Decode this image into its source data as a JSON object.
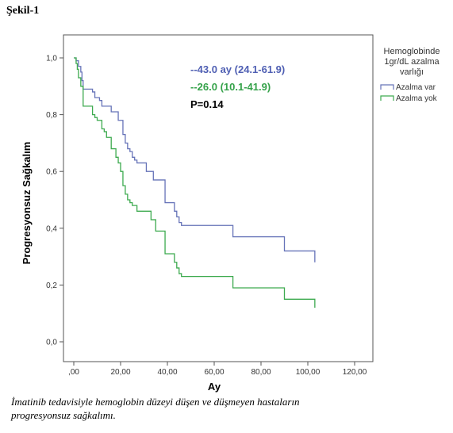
{
  "figure_title": "Şekil-1",
  "caption_lines": [
    "İmatinib tedavisiyle hemoglobin düzeyi düşen ve düşmeyen hastaların",
    "progresyonsuz sağkalımı."
  ],
  "chart_data": {
    "type": "line",
    "title": "",
    "xlabel": "Ay",
    "ylabel": "Progresyonsuz Sağkalım",
    "xlim": [
      0,
      120
    ],
    "ylim": [
      0,
      1
    ],
    "x_ticks": [
      0,
      20,
      40,
      60,
      80,
      100,
      120
    ],
    "x_tick_labels": [
      ",00",
      "20,00",
      "40,00",
      "60,00",
      "80,00",
      "100,00",
      "120,00"
    ],
    "y_ticks": [
      0,
      0.2,
      0.4,
      0.6,
      0.8,
      1.0
    ],
    "y_tick_labels": [
      "0,0",
      "0,2",
      "0,4",
      "0,6",
      "0,8",
      "1,0"
    ],
    "grid": false,
    "step": true,
    "legend": {
      "position": "top-right",
      "title_lines": [
        "Hemoglobinde",
        "1gr/dL azalma",
        "varlığı"
      ]
    },
    "series": [
      {
        "name": "Azalma var",
        "color": "#6673b8",
        "points": [
          [
            0,
            1.0
          ],
          [
            1,
            0.99
          ],
          [
            2,
            0.97
          ],
          [
            3,
            0.95
          ],
          [
            3.5,
            0.92
          ],
          [
            4,
            0.89
          ],
          [
            8,
            0.88
          ],
          [
            9,
            0.86
          ],
          [
            11,
            0.85
          ],
          [
            12,
            0.83
          ],
          [
            16,
            0.81
          ],
          [
            19,
            0.78
          ],
          [
            21,
            0.73
          ],
          [
            22,
            0.7
          ],
          [
            23,
            0.68
          ],
          [
            24,
            0.67
          ],
          [
            25,
            0.65
          ],
          [
            26,
            0.64
          ],
          [
            27,
            0.63
          ],
          [
            31,
            0.6
          ],
          [
            34,
            0.57
          ],
          [
            39,
            0.49
          ],
          [
            43,
            0.46
          ],
          [
            44,
            0.44
          ],
          [
            45,
            0.42
          ],
          [
            46,
            0.41
          ],
          [
            68,
            0.37
          ],
          [
            90,
            0.32
          ],
          [
            103,
            0.28
          ]
        ]
      },
      {
        "name": "Azalma yok",
        "color": "#3daa4f",
        "points": [
          [
            0,
            1.0
          ],
          [
            1,
            0.98
          ],
          [
            1.5,
            0.96
          ],
          [
            2,
            0.93
          ],
          [
            3,
            0.9
          ],
          [
            4,
            0.83
          ],
          [
            8,
            0.8
          ],
          [
            9,
            0.79
          ],
          [
            10,
            0.78
          ],
          [
            12,
            0.75
          ],
          [
            13,
            0.74
          ],
          [
            14,
            0.72
          ],
          [
            16,
            0.68
          ],
          [
            18,
            0.65
          ],
          [
            19,
            0.63
          ],
          [
            20,
            0.6
          ],
          [
            21,
            0.55
          ],
          [
            22,
            0.52
          ],
          [
            23,
            0.5
          ],
          [
            24,
            0.49
          ],
          [
            25,
            0.48
          ],
          [
            27,
            0.46
          ],
          [
            33,
            0.43
          ],
          [
            35,
            0.39
          ],
          [
            39,
            0.31
          ],
          [
            43,
            0.28
          ],
          [
            44,
            0.26
          ],
          [
            45,
            0.24
          ],
          [
            46,
            0.23
          ],
          [
            68,
            0.19
          ],
          [
            90,
            0.15
          ],
          [
            103,
            0.12
          ]
        ]
      }
    ],
    "annotations": [
      {
        "text": "--43.0 ay (24.1-61.9)",
        "color": "#4f5fb3"
      },
      {
        "text": "--26.0 (10.1-41.9)",
        "color": "#35a24a"
      },
      {
        "text": "P=0.14",
        "color": "#000000"
      }
    ]
  }
}
